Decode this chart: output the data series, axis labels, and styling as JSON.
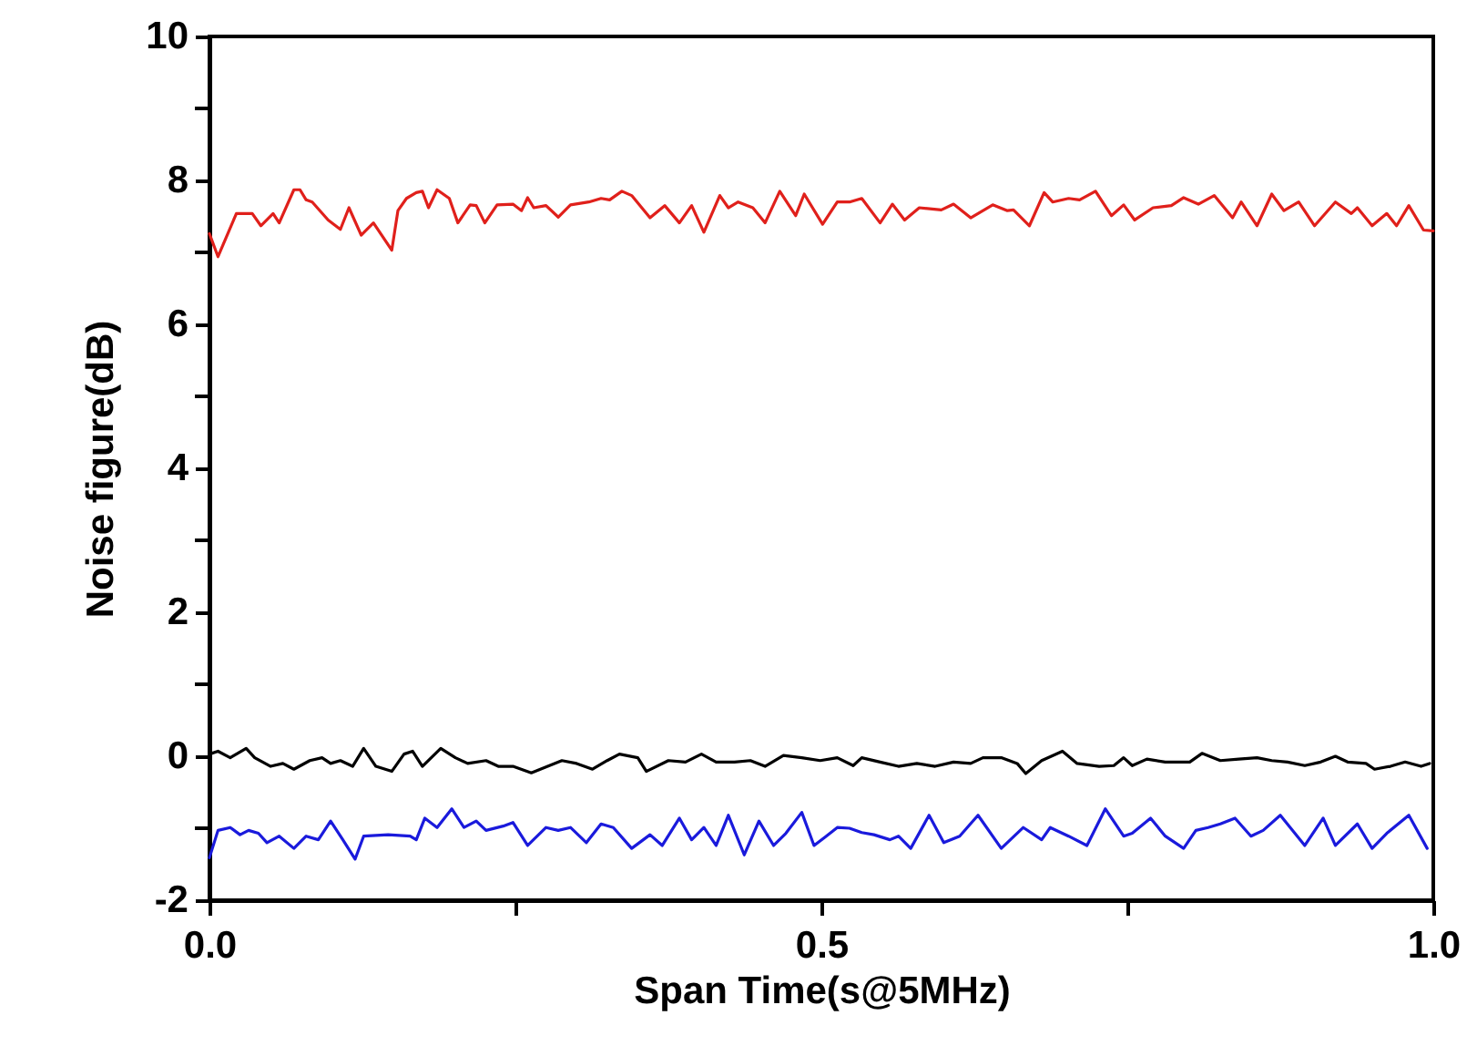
{
  "chart_data": {
    "type": "line",
    "xlabel": "Span Time(s@5MHz)",
    "ylabel": "Noise figure(dB)",
    "xlim": [
      0,
      1
    ],
    "xticks": [
      {
        "value": 0,
        "label": "0.0"
      },
      {
        "value": 0.25,
        "label": null
      },
      {
        "value": 0.5,
        "label": "0.5"
      },
      {
        "value": 0.75,
        "label": null
      },
      {
        "value": 1,
        "label": "1.0"
      }
    ],
    "ylim": [
      -2,
      10
    ],
    "yticks": [
      -2,
      {
        "value": -1,
        "label": null
      },
      0,
      {
        "value": 1,
        "label": null
      },
      2,
      {
        "value": 3,
        "label": null
      },
      4,
      {
        "value": 5,
        "label": null
      },
      6,
      {
        "value": 7,
        "label": null
      },
      8,
      {
        "value": 9,
        "label": null
      },
      10
    ],
    "grid": false,
    "marker": "none",
    "line_style": "solid",
    "series": [
      {
        "color": "#e0201b",
        "x": [
          0,
          0.007,
          0.022,
          0.035,
          0.042,
          0.052,
          0.057,
          0.069,
          0.074,
          0.079,
          0.084,
          0.097,
          0.107,
          0.114,
          0.124,
          0.134,
          0.149,
          0.154,
          0.161,
          0.169,
          0.174,
          0.179,
          0.186,
          0.196,
          0.203,
          0.213,
          0.218,
          0.225,
          0.235,
          0.248,
          0.255,
          0.26,
          0.265,
          0.275,
          0.285,
          0.295,
          0.31,
          0.32,
          0.327,
          0.337,
          0.345,
          0.36,
          0.372,
          0.384,
          0.394,
          0.404,
          0.417,
          0.424,
          0.432,
          0.444,
          0.454,
          0.466,
          0.479,
          0.486,
          0.501,
          0.513,
          0.523,
          0.533,
          0.548,
          0.558,
          0.568,
          0.58,
          0.598,
          0.608,
          0.622,
          0.64,
          0.652,
          0.657,
          0.67,
          0.682,
          0.689,
          0.702,
          0.711,
          0.724,
          0.737,
          0.747,
          0.756,
          0.771,
          0.786,
          0.796,
          0.808,
          0.821,
          0.836,
          0.843,
          0.856,
          0.868,
          0.878,
          0.89,
          0.903,
          0.92,
          0.933,
          0.938,
          0.95,
          0.962,
          0.97,
          0.98,
          0.992,
          1
        ],
        "values": [
          7.26,
          6.94,
          7.54,
          7.54,
          7.37,
          7.54,
          7.41,
          7.87,
          7.87,
          7.73,
          7.7,
          7.45,
          7.32,
          7.62,
          7.24,
          7.41,
          7.03,
          7.58,
          7.75,
          7.83,
          7.85,
          7.62,
          7.87,
          7.75,
          7.41,
          7.66,
          7.65,
          7.41,
          7.66,
          7.67,
          7.58,
          7.76,
          7.62,
          7.65,
          7.49,
          7.66,
          7.7,
          7.75,
          7.73,
          7.85,
          7.79,
          7.48,
          7.65,
          7.41,
          7.65,
          7.28,
          7.79,
          7.62,
          7.7,
          7.62,
          7.41,
          7.85,
          7.51,
          7.81,
          7.39,
          7.7,
          7.7,
          7.75,
          7.41,
          7.67,
          7.45,
          7.62,
          7.59,
          7.67,
          7.48,
          7.66,
          7.58,
          7.59,
          7.37,
          7.83,
          7.7,
          7.75,
          7.73,
          7.85,
          7.51,
          7.66,
          7.45,
          7.62,
          7.65,
          7.76,
          7.67,
          7.79,
          7.48,
          7.7,
          7.37,
          7.81,
          7.58,
          7.7,
          7.37,
          7.7,
          7.54,
          7.62,
          7.37,
          7.54,
          7.37,
          7.65,
          7.31,
          7.3
        ]
      },
      {
        "color": "#000000",
        "x": [
          0,
          0.007,
          0.017,
          0.03,
          0.037,
          0.05,
          0.06,
          0.069,
          0.082,
          0.092,
          0.099,
          0.107,
          0.117,
          0.126,
          0.136,
          0.149,
          0.159,
          0.166,
          0.174,
          0.189,
          0.201,
          0.211,
          0.226,
          0.236,
          0.248,
          0.263,
          0.275,
          0.288,
          0.3,
          0.313,
          0.325,
          0.335,
          0.35,
          0.357,
          0.375,
          0.389,
          0.402,
          0.414,
          0.429,
          0.442,
          0.454,
          0.469,
          0.484,
          0.499,
          0.513,
          0.526,
          0.533,
          0.548,
          0.563,
          0.578,
          0.593,
          0.608,
          0.622,
          0.632,
          0.647,
          0.66,
          0.667,
          0.68,
          0.697,
          0.709,
          0.727,
          0.739,
          0.747,
          0.754,
          0.766,
          0.781,
          0.801,
          0.811,
          0.826,
          0.841,
          0.856,
          0.868,
          0.881,
          0.895,
          0.908,
          0.92,
          0.93,
          0.945,
          0.952,
          0.965,
          0.977,
          0.99,
          0.997
        ],
        "values": [
          0.03,
          0.07,
          -0.02,
          0.11,
          -0.02,
          -0.14,
          -0.1,
          -0.18,
          -0.06,
          -0.02,
          -0.1,
          -0.06,
          -0.14,
          0.11,
          -0.14,
          -0.21,
          0.03,
          0.07,
          -0.14,
          0.11,
          -0.02,
          -0.1,
          -0.06,
          -0.14,
          -0.14,
          -0.23,
          -0.15,
          -0.06,
          -0.1,
          -0.18,
          -0.06,
          0.03,
          -0.02,
          -0.21,
          -0.06,
          -0.08,
          0.03,
          -0.08,
          -0.08,
          -0.06,
          -0.14,
          0.01,
          -0.02,
          -0.06,
          -0.02,
          -0.13,
          -0.02,
          -0.08,
          -0.14,
          -0.1,
          -0.14,
          -0.08,
          -0.1,
          -0.02,
          -0.02,
          -0.1,
          -0.24,
          -0.06,
          0.07,
          -0.1,
          -0.14,
          -0.13,
          -0.02,
          -0.13,
          -0.04,
          -0.08,
          -0.08,
          0.04,
          -0.06,
          -0.04,
          -0.02,
          -0.06,
          -0.08,
          -0.13,
          -0.08,
          0,
          -0.08,
          -0.1,
          -0.18,
          -0.14,
          -0.08,
          -0.14,
          -0.1
        ]
      },
      {
        "color": "#1a1adc",
        "x": [
          0,
          0.007,
          0.017,
          0.025,
          0.032,
          0.04,
          0.047,
          0.057,
          0.069,
          0.079,
          0.089,
          0.099,
          0.109,
          0.119,
          0.126,
          0.146,
          0.164,
          0.169,
          0.176,
          0.186,
          0.198,
          0.208,
          0.218,
          0.226,
          0.24,
          0.248,
          0.26,
          0.275,
          0.285,
          0.295,
          0.308,
          0.32,
          0.33,
          0.345,
          0.36,
          0.37,
          0.384,
          0.394,
          0.404,
          0.414,
          0.424,
          0.437,
          0.449,
          0.461,
          0.471,
          0.484,
          0.494,
          0.504,
          0.513,
          0.523,
          0.533,
          0.543,
          0.556,
          0.563,
          0.573,
          0.588,
          0.6,
          0.613,
          0.628,
          0.647,
          0.665,
          0.68,
          0.687,
          0.702,
          0.717,
          0.732,
          0.747,
          0.754,
          0.769,
          0.781,
          0.796,
          0.806,
          0.816,
          0.826,
          0.838,
          0.851,
          0.861,
          0.875,
          0.895,
          0.91,
          0.92,
          0.938,
          0.95,
          0.962,
          0.98,
          0.995
        ],
        "values": [
          -1.41,
          -1.03,
          -0.99,
          -1.09,
          -1.03,
          -1.07,
          -1.2,
          -1.11,
          -1.28,
          -1.11,
          -1.16,
          -0.9,
          -1.16,
          -1.43,
          -1.11,
          -1.09,
          -1.11,
          -1.16,
          -0.86,
          -0.99,
          -0.73,
          -0.99,
          -0.9,
          -1.03,
          -0.97,
          -0.92,
          -1.24,
          -0.99,
          -1.03,
          -0.99,
          -1.2,
          -0.94,
          -0.99,
          -1.28,
          -1.09,
          -1.24,
          -0.86,
          -1.16,
          -0.99,
          -1.24,
          -0.82,
          -1.37,
          -0.9,
          -1.24,
          -1.07,
          -0.78,
          -1.24,
          -1.11,
          -0.99,
          -1,
          -1.06,
          -1.09,
          -1.16,
          -1.11,
          -1.28,
          -0.82,
          -1.2,
          -1.11,
          -0.82,
          -1.28,
          -0.99,
          -1.16,
          -0.99,
          -1.11,
          -1.24,
          -0.73,
          -1.11,
          -1.07,
          -0.86,
          -1.11,
          -1.28,
          -1.03,
          -0.99,
          -0.94,
          -0.86,
          -1.11,
          -1.03,
          -0.82,
          -1.24,
          -0.86,
          -1.24,
          -0.94,
          -1.28,
          -1.07,
          -0.82,
          -1.28
        ]
      }
    ]
  }
}
